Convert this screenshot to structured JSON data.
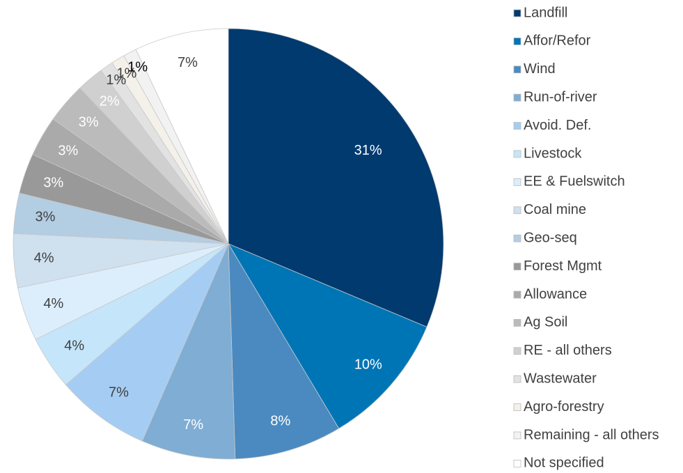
{
  "chart_data": {
    "type": "pie",
    "categories": [
      "Landfill",
      "Affor/Refor",
      "Wind",
      "Run-of-river",
      "Avoid. Def.",
      "Livestock",
      "EE & Fuelswitch",
      "Coal mine",
      "Geo-seq",
      "Forest Mgmt",
      "Allowance",
      "Ag Soil",
      "RE - all others",
      "Wastewater",
      "Agro-forestry",
      "Remaining - all others",
      "Not specified"
    ],
    "values": [
      31,
      10,
      8,
      7,
      7,
      4,
      4,
      4,
      3,
      3,
      3,
      3,
      2,
      1,
      1,
      1,
      7
    ],
    "value_labels": [
      "31%",
      "10%",
      "8%",
      "7%",
      "7%",
      "4%",
      "4%",
      "4%",
      "3%",
      "3%",
      "3%",
      "3%",
      "2%",
      "1%",
      "1%",
      "1%",
      "7%"
    ],
    "colors": [
      "#003a6f",
      "#0075b5",
      "#4a8ac0",
      "#7fadd4",
      "#a5cdf4",
      "#c5e5fa",
      "#dceefc",
      "#cfe0ef",
      "#b3cde3",
      "#999999",
      "#aaaaaa",
      "#bbbbbb",
      "#d0d0d0",
      "#e2e2e2",
      "#f4f0ea",
      "#f2f2f2",
      "#ffffff"
    ],
    "value_label_colors": [
      "#ffffff",
      "#ffffff",
      "#ffffff",
      "#ffffff",
      "#404040",
      "#404040",
      "#404040",
      "#404040",
      "#404040",
      "#ffffff",
      "#ffffff",
      "#ffffff",
      "#ffffff",
      "#404040",
      "#404040",
      "#000000",
      "#404040"
    ],
    "legend": "right"
  }
}
